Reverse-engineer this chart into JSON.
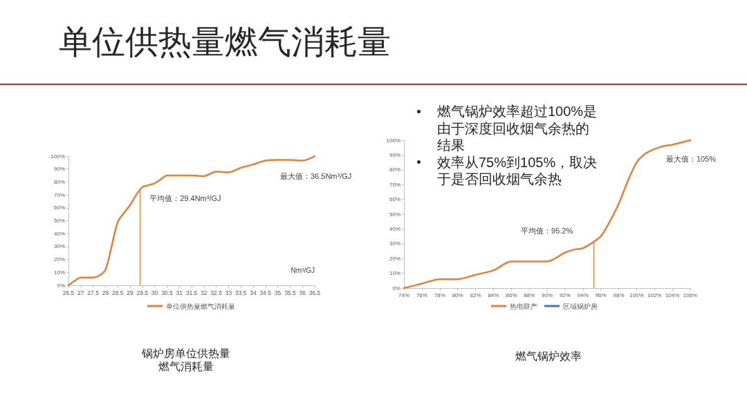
{
  "chart_data": [
    {
      "type": "line",
      "title": "单位供热量燃气消耗量",
      "subtitle": "锅炉房单位供热量燃气消耗量",
      "xlabel": "Nm³/GJ",
      "legend": "bottom",
      "x": [
        26.5,
        26.75,
        27,
        27.25,
        27.5,
        27.75,
        28,
        28.25,
        28.5,
        28.75,
        29,
        29.25,
        29.5,
        29.75,
        30,
        30.25,
        30.5,
        31,
        31.5,
        32,
        32.5,
        33,
        33.5,
        34,
        34.5,
        35,
        35.5,
        36,
        36.5
      ],
      "series": [
        {
          "name": "单位供热量燃气消耗量",
          "color": "#ed7d31",
          "values": [
            0,
            3.5,
            6,
            6,
            6,
            7.5,
            12,
            30,
            49,
            56,
            62,
            70,
            76,
            77.5,
            79,
            82,
            85,
            85,
            85,
            84.5,
            88,
            87.5,
            91,
            93.5,
            96.5,
            97,
            97,
            96.5,
            100
          ]
        }
      ],
      "xlim": [
        26.5,
        36.5
      ],
      "xticks": [
        26.5,
        27,
        27.5,
        28,
        28.5,
        29,
        29.5,
        30,
        30.5,
        31,
        31.5,
        32,
        32.5,
        33,
        33.5,
        34,
        34.5,
        35,
        35.5,
        36,
        36.5
      ],
      "ylim": [
        0,
        100
      ],
      "yticks": [
        {
          "value": 0,
          "label": "0%"
        },
        {
          "value": 10,
          "label": "10%"
        },
        {
          "value": 20,
          "label": "20%"
        },
        {
          "value": 30,
          "label": "30%"
        },
        {
          "value": 40,
          "label": "40%"
        },
        {
          "value": 50,
          "label": "50%"
        },
        {
          "value": 60,
          "label": "60%"
        },
        {
          "value": 70,
          "label": "70%"
        },
        {
          "value": 80,
          "label": "80%"
        },
        {
          "value": 90,
          "label": "90%"
        },
        {
          "value": 100,
          "label": "100%"
        }
      ],
      "ref_lines": [
        {
          "axis": "x",
          "value": 29.4,
          "label": "平均值：29.4Nm³/GJ",
          "color": "#ed7d31"
        }
      ],
      "annotations": [
        {
          "text": "最大值：36.5Nm³/GJ",
          "x": 36.5,
          "y": 100
        }
      ]
    },
    {
      "type": "line",
      "title": "燃气锅炉效率",
      "legend": "bottom",
      "x": [
        74,
        76,
        78,
        80,
        82,
        84,
        86,
        88,
        90,
        92,
        93,
        94,
        95,
        96,
        97,
        98,
        99,
        100,
        101,
        102,
        103,
        104,
        105,
        106
      ],
      "series": [
        {
          "name": "热电联产",
          "color": "#ed7d31",
          "values": [
            0,
            3,
            6,
            6,
            9,
            12,
            18,
            18,
            18,
            24,
            26,
            27,
            30.5,
            35,
            45,
            57,
            72,
            85,
            91,
            94,
            96,
            97,
            98.5,
            100
          ]
        },
        {
          "name": "区域锅炉房",
          "color": "#4472c4",
          "values": [
            null,
            null,
            null,
            null,
            null,
            null,
            null,
            null,
            null,
            null,
            null,
            null,
            null,
            null,
            null,
            null,
            null,
            null,
            null,
            null,
            null,
            null,
            null,
            null
          ]
        }
      ],
      "xlim": [
        74,
        106
      ],
      "xticks": [
        {
          "value": 74,
          "label": "74%"
        },
        {
          "value": 76,
          "label": "76%"
        },
        {
          "value": 78,
          "label": "78%"
        },
        {
          "value": 80,
          "label": "80%"
        },
        {
          "value": 82,
          "label": "82%"
        },
        {
          "value": 84,
          "label": "84%"
        },
        {
          "value": 86,
          "label": "86%"
        },
        {
          "value": 88,
          "label": "88%"
        },
        {
          "value": 90,
          "label": "90%"
        },
        {
          "value": 92,
          "label": "92%"
        },
        {
          "value": 94,
          "label": "94%"
        },
        {
          "value": 96,
          "label": "96%"
        },
        {
          "value": 98,
          "label": "98%"
        },
        {
          "value": 100,
          "label": "100%"
        },
        {
          "value": 102,
          "label": "102%"
        },
        {
          "value": 104,
          "label": "104%"
        },
        {
          "value": 106,
          "label": "106%"
        }
      ],
      "ylim": [
        0,
        100
      ],
      "yticks": [
        {
          "value": 0,
          "label": "0%"
        },
        {
          "value": 10,
          "label": "10%"
        },
        {
          "value": 20,
          "label": "20%"
        },
        {
          "value": 30,
          "label": "30%"
        },
        {
          "value": 40,
          "label": "40%"
        },
        {
          "value": 50,
          "label": "50%"
        },
        {
          "value": 60,
          "label": "60%"
        },
        {
          "value": 70,
          "label": "70%"
        },
        {
          "value": 80,
          "label": "80%"
        },
        {
          "value": 90,
          "label": "90%"
        },
        {
          "value": 100,
          "label": "100%"
        }
      ],
      "ref_lines": [
        {
          "axis": "x",
          "value": 95.2,
          "label": "平均值：95.2%",
          "color": "#ed7d31"
        }
      ],
      "annotations": [
        "燃气锅炉效率超过100%是由于深度回收烟气余热的结果",
        "效率从75%到105%，取决于是否回收烟气余热",
        {
          "text": "最大值：105%",
          "x": 106,
          "y": 100
        }
      ]
    }
  ]
}
